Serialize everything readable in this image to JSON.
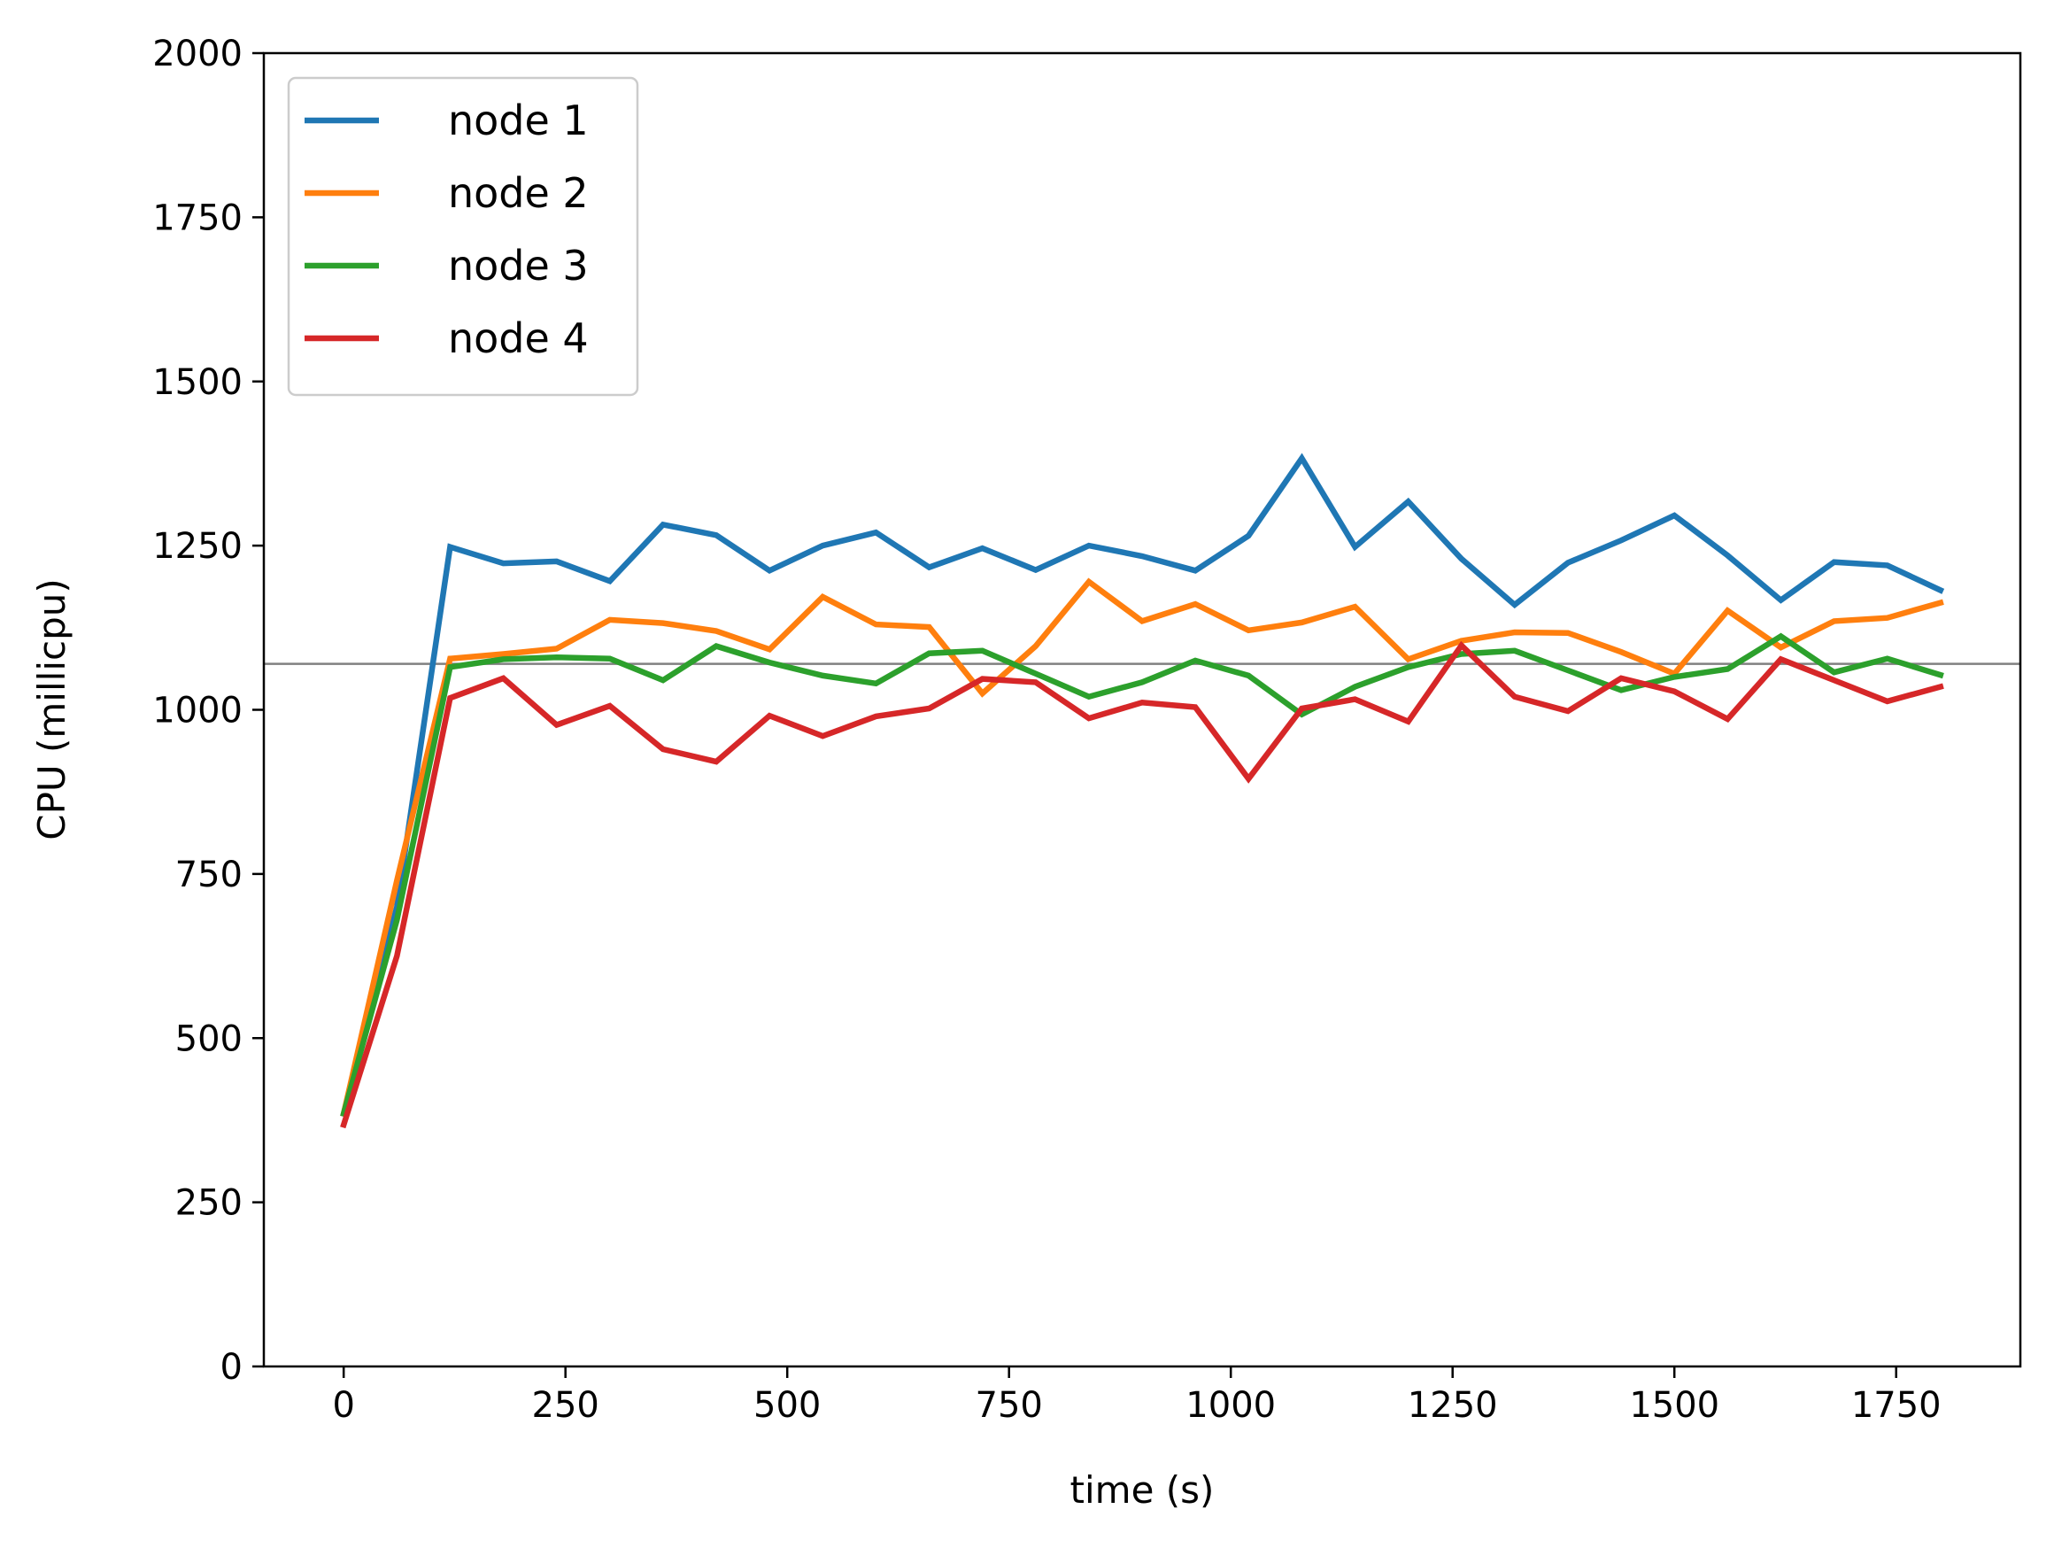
{
  "chart_data": {
    "type": "line",
    "title": "",
    "xlabel": "time (s)",
    "ylabel": "CPU (millicpu)",
    "xlim": [
      -90,
      1890
    ],
    "ylim": [
      0,
      2000
    ],
    "xticks": [
      0,
      250,
      500,
      750,
      1000,
      1250,
      1500,
      1750
    ],
    "yticks": [
      0,
      250,
      500,
      750,
      1000,
      1250,
      1500,
      1750,
      2000
    ],
    "grid": false,
    "legend_position": "top-left",
    "reference_line": {
      "y": 1070,
      "color": "#808080"
    },
    "x": [
      0,
      60,
      120,
      180,
      240,
      300,
      360,
      420,
      480,
      540,
      600,
      660,
      720,
      780,
      840,
      900,
      960,
      1020,
      1080,
      1140,
      1200,
      1260,
      1320,
      1380,
      1440,
      1500,
      1560,
      1620,
      1680,
      1740,
      1800
    ],
    "series": [
      {
        "name": "node 1",
        "color": "#1f77b4",
        "values": [
          385,
          700,
          1248,
          1223,
          1226,
          1196,
          1282,
          1266,
          1212,
          1250,
          1270,
          1217,
          1246,
          1213,
          1250,
          1234,
          1212,
          1265,
          1383,
          1248,
          1317,
          1230,
          1160,
          1224,
          1258,
          1296,
          1235,
          1167,
          1225,
          1220,
          1182
        ]
      },
      {
        "name": "node 2",
        "color": "#ff7f0e",
        "values": [
          385,
          740,
          1078,
          1085,
          1093,
          1137,
          1132,
          1120,
          1092,
          1172,
          1130,
          1126,
          1025,
          1097,
          1195,
          1135,
          1161,
          1121,
          1133,
          1157,
          1077,
          1105,
          1118,
          1117,
          1088,
          1055,
          1151,
          1095,
          1135,
          1140,
          1163
        ]
      },
      {
        "name": "node 3",
        "color": "#2ca02c",
        "values": [
          385,
          680,
          1065,
          1077,
          1080,
          1078,
          1045,
          1097,
          1072,
          1052,
          1040,
          1086,
          1090,
          1055,
          1020,
          1042,
          1075,
          1052,
          993,
          1035,
          1065,
          1085,
          1090,
          1060,
          1030,
          1050,
          1062,
          1112,
          1057,
          1078,
          1053
        ]
      },
      {
        "name": "node 4",
        "color": "#d62728",
        "values": [
          368,
          625,
          1018,
          1048,
          977,
          1006,
          940,
          921,
          991,
          960,
          990,
          1002,
          1047,
          1042,
          987,
          1011,
          1004,
          895,
          1002,
          1016,
          982,
          1098,
          1020,
          998,
          1048,
          1028,
          986,
          1077,
          1045,
          1013,
          1035
        ]
      }
    ]
  }
}
